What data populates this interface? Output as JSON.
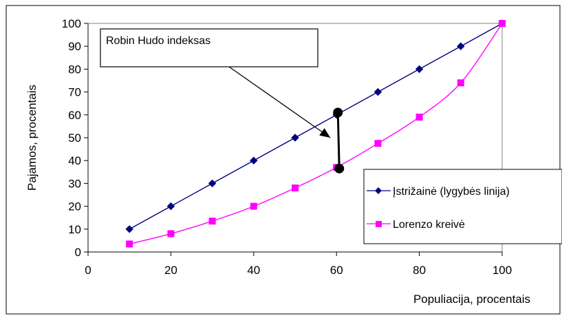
{
  "chart_data": {
    "type": "line",
    "xlabel": "Populiacija, procentais",
    "ylabel": "Pajamos, procentais",
    "xlim": [
      0,
      100
    ],
    "ylim": [
      0,
      100
    ],
    "xticks": [
      0,
      20,
      40,
      60,
      80,
      100
    ],
    "yticks": [
      0,
      10,
      20,
      30,
      40,
      50,
      60,
      70,
      80,
      90,
      100
    ],
    "grid": false,
    "legend_position": "right",
    "series": [
      {
        "name": "Įstrižainė (lygybės linija)",
        "color": "#000080",
        "marker": "diamond",
        "x": [
          10,
          20,
          30,
          40,
          50,
          60,
          70,
          80,
          90,
          100
        ],
        "y": [
          10,
          20,
          30,
          40,
          50,
          60,
          70,
          80,
          90,
          100
        ]
      },
      {
        "name": "Lorenzo kreivė",
        "color": "#ff00ff",
        "marker": "square",
        "x": [
          10,
          20,
          30,
          40,
          50,
          60,
          70,
          80,
          90,
          100
        ],
        "y": [
          3.5,
          8,
          13.5,
          20,
          28,
          37,
          47.5,
          59,
          74,
          100
        ]
      }
    ],
    "annotation": {
      "text": "Robin Hudo indeksas",
      "gap_x": 60.5,
      "gap_upper": 61,
      "gap_lower": 36.5,
      "arrow_tip": [
        58.5,
        50
      ]
    }
  }
}
